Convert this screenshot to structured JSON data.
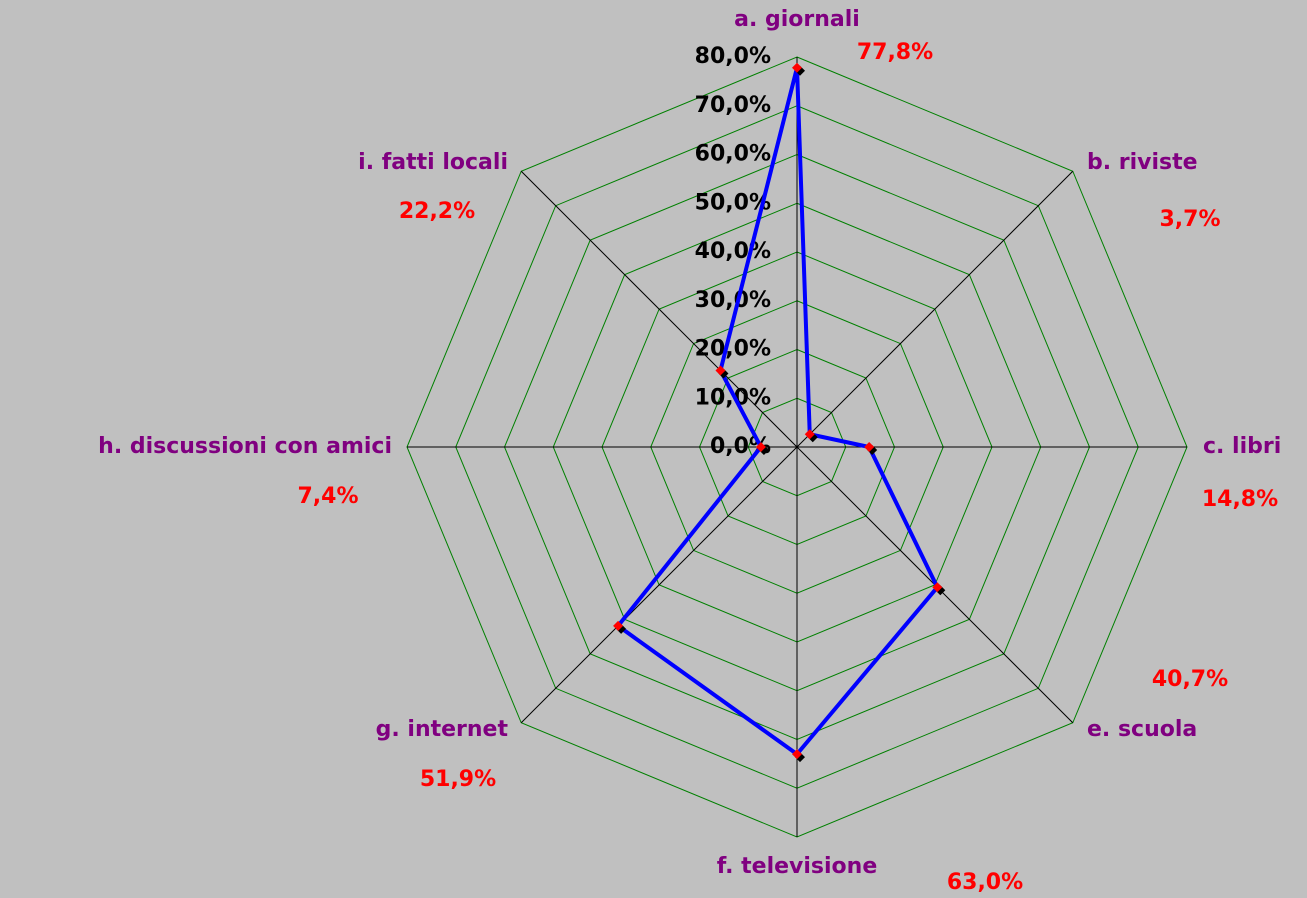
{
  "chart_data": {
    "type": "radar",
    "categories": [
      "a. giornali",
      "b. riviste",
      "c. libri",
      "e. scuola",
      "f. televisione",
      "g. internet",
      "h. discussioni con amici",
      "i. fatti locali"
    ],
    "series": [
      {
        "name": null,
        "color": "#0000ff",
        "values": [
          77.8,
          3.7,
          14.8,
          40.7,
          63.0,
          51.9,
          7.4,
          22.2
        ],
        "value_labels": [
          "77,8%",
          "3,7%",
          "14,8%",
          "40,7%",
          "63,0%",
          "51,9%",
          "7,4%",
          "22,2%"
        ]
      }
    ],
    "ylim": [
      0,
      80
    ],
    "yticks": [
      {
        "value": 0,
        "label": "0,0%"
      },
      {
        "value": 10,
        "label": "10,0%"
      },
      {
        "value": 20,
        "label": "20,0%"
      },
      {
        "value": 30,
        "label": "30,0%"
      },
      {
        "value": 40,
        "label": "40,0%"
      },
      {
        "value": 50,
        "label": "50,0%"
      },
      {
        "value": 60,
        "label": "60,0%"
      },
      {
        "value": 70,
        "label": "70,0%"
      },
      {
        "value": 80,
        "label": "80,0%"
      }
    ],
    "grid": true,
    "grid_color": "#008000",
    "marker_color": "#ff0000"
  }
}
